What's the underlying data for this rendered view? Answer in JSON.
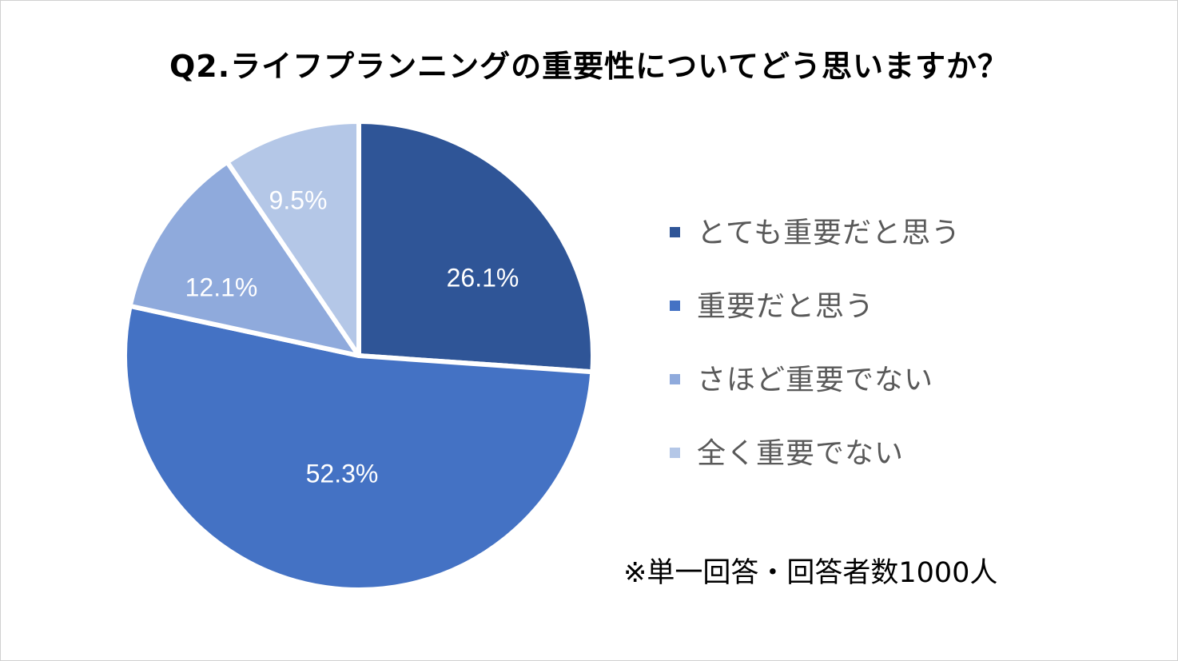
{
  "chart_data": {
    "type": "pie",
    "title": "Q2.ライフプランニングの重要性についてどう思いますか？",
    "categories": [
      "とても重要だと思う",
      "重要だと思う",
      "さほど重要でない",
      "全く重要でない"
    ],
    "values": [
      26.1,
      52.3,
      12.1,
      9.5
    ],
    "data_labels": [
      "26.1%",
      "52.3%",
      "12.1%",
      "9.5%"
    ],
    "colors": [
      "#2f5597",
      "#4472c4",
      "#8faadc",
      "#b4c7e7"
    ],
    "legend_position": "right",
    "start": "12 o'clock, clockwise"
  },
  "note": "※単一回答・回答者数1000人"
}
